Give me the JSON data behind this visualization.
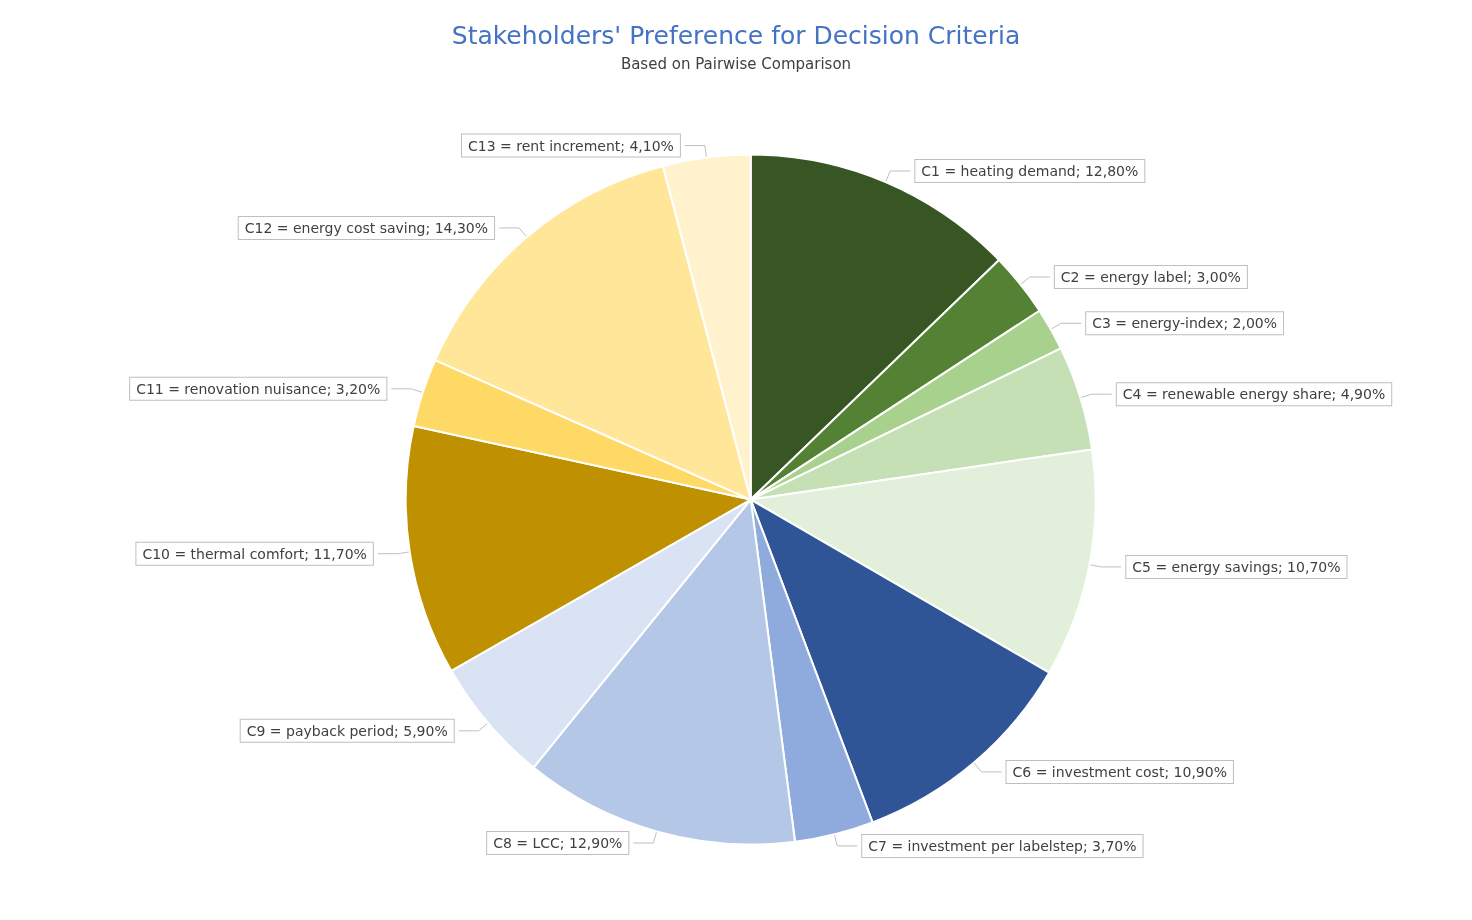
{
  "chart_data": {
    "type": "pie",
    "title": "Stakeholders' Preference for Decision Criteria",
    "subtitle": "Based on Pairwise Comparison",
    "categories": [
      "C1 = heating demand",
      "C2 = energy label",
      "C3 = energy-index",
      "C4 = renewable energy share",
      "C5 = energy savings",
      "C6 = investment cost",
      "C7 = investment per labelstep",
      "C8 = LCC",
      "C9 = payback period",
      "C10 = thermal comfort",
      "C11 = renovation nuisance",
      "C12 = energy cost saving",
      "C13 = rent increment"
    ],
    "values": [
      12.8,
      3.0,
      2.0,
      4.9,
      10.7,
      10.9,
      3.7,
      12.9,
      5.9,
      11.7,
      3.2,
      14.3,
      4.1
    ],
    "value_labels": [
      "12,80%",
      "3,00%",
      "2,00%",
      "4,90%",
      "10,70%",
      "10,90%",
      "3,70%",
      "12,90%",
      "5,90%",
      "11,70%",
      "3,20%",
      "14,30%",
      "4,10%"
    ],
    "colors": [
      "#375623",
      "#548235",
      "#a9d18e",
      "#c5e0b4",
      "#e2efda",
      "#2f5597",
      "#8faadc",
      "#b4c7e7",
      "#dae3f3",
      "#bf9000",
      "#ffd966",
      "#ffe699",
      "#fff2cc"
    ]
  }
}
